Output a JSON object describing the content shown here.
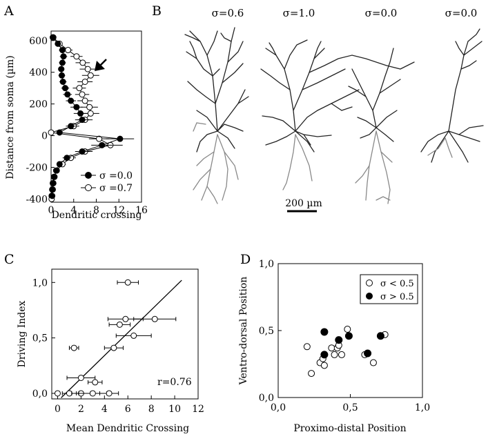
{
  "panels": {
    "A": "A",
    "B": "B",
    "C": "C",
    "D": "D"
  },
  "sigma_labels": [
    "σ=0.6",
    "σ=1.0",
    "σ=0.0",
    "σ=0.0"
  ],
  "scale_bar": "200 µm",
  "chart_data": [
    {
      "panel": "A",
      "type": "line",
      "xlabel": "Dendritic crossing",
      "ylabel": "Distance from soma (µm)",
      "xlim": [
        0,
        16
      ],
      "ylim": [
        -420,
        660
      ],
      "xticks": [
        0,
        4,
        8,
        12,
        16
      ],
      "yticks": [
        600,
        400,
        200,
        0,
        -200,
        -400
      ],
      "legend": "bottom-right",
      "annotation": "arrow at ~420 µm",
      "series": [
        {
          "name": "σ =0.0",
          "marker": "filled",
          "y": [
            620,
            580,
            540,
            500,
            460,
            420,
            380,
            340,
            300,
            260,
            220,
            180,
            140,
            100,
            60,
            20,
            -20,
            -60,
            -100,
            -140,
            -180,
            -220,
            -260,
            -300,
            -340,
            -380
          ],
          "x": [
            0.3,
            1.2,
            2.0,
            2.2,
            2.0,
            1.8,
            1.9,
            2.1,
            2.5,
            2.9,
            3.5,
            4.5,
            5.2,
            5.5,
            3.5,
            1.5,
            12.2,
            9.0,
            5.5,
            2.8,
            1.5,
            0.9,
            0.6,
            0.4,
            0.3,
            0.2
          ]
        },
        {
          "name": "σ =0.7",
          "marker": "open",
          "y": [
            620,
            580,
            540,
            500,
            460,
            420,
            380,
            340,
            300,
            260,
            220,
            180,
            140,
            100,
            60,
            20,
            -20,
            -60,
            -100,
            -140,
            -180,
            -220,
            -260,
            -300,
            -340,
            -380,
            -400
          ],
          "x": [
            0.4,
            1.5,
            3.0,
            4.5,
            5.6,
            6.5,
            7.0,
            6.0,
            5.0,
            5.5,
            6.0,
            6.8,
            7.0,
            6.0,
            4.0,
            0.0,
            8.5,
            10.5,
            6.0,
            3.5,
            2.0,
            1.0,
            0.5,
            0.3,
            0.2,
            0.1,
            0.1
          ]
        }
      ]
    },
    {
      "panel": "C",
      "type": "scatter",
      "xlabel": "Mean Dendritic Crossing",
      "ylabel": "Driving Index",
      "xlim": [
        -0.5,
        12
      ],
      "ylim": [
        -0.05,
        1.12
      ],
      "xticks": [
        0,
        2,
        4,
        6,
        8,
        10,
        12
      ],
      "yticks": [
        "0,0",
        "0,5",
        "1,0"
      ],
      "annotation": "r=0.76",
      "fit_line": {
        "x": [
          0.3,
          10.6
        ],
        "y": [
          -0.04,
          1.02
        ]
      },
      "points": [
        {
          "x": 6.0,
          "y": 1.0,
          "xerr": 0.9
        },
        {
          "x": 5.8,
          "y": 0.67,
          "xerr": 1.5
        },
        {
          "x": 8.3,
          "y": 0.67,
          "xerr": 1.8
        },
        {
          "x": 5.3,
          "y": 0.62,
          "xerr": 0.9
        },
        {
          "x": 6.5,
          "y": 0.52,
          "xerr": 1.5
        },
        {
          "x": 4.8,
          "y": 0.41,
          "xerr": 0.8
        },
        {
          "x": 1.4,
          "y": 0.41,
          "xerr": 0.4
        },
        {
          "x": 2.0,
          "y": 0.14,
          "xerr": 1.2
        },
        {
          "x": 3.2,
          "y": 0.1,
          "xerr": 0.6
        },
        {
          "x": 0.0,
          "y": 0.0,
          "xerr": 0.0
        },
        {
          "x": 1.0,
          "y": 0.0,
          "xerr": 0.6
        },
        {
          "x": 2.0,
          "y": 0.0,
          "xerr": 0.8
        },
        {
          "x": 3.0,
          "y": 0.0,
          "xerr": 1.2
        },
        {
          "x": 4.4,
          "y": 0.0,
          "xerr": 0.8
        }
      ]
    },
    {
      "panel": "D",
      "type": "scatter",
      "xlabel": "Proximo-distal Position",
      "ylabel": "Ventro-dorsal Position",
      "xlim": [
        0,
        1
      ],
      "ylim": [
        0,
        1
      ],
      "xticks": [
        "0,0",
        "0,5",
        "1,0"
      ],
      "yticks": [
        "0,0",
        "0,5",
        "1,0"
      ],
      "legend": "top-right",
      "series": [
        {
          "name": "σ < 0.5",
          "marker": "open",
          "points": [
            [
              0.2,
              0.38
            ],
            [
              0.23,
              0.18
            ],
            [
              0.29,
              0.26
            ],
            [
              0.31,
              0.29
            ],
            [
              0.32,
              0.24
            ],
            [
              0.37,
              0.37
            ],
            [
              0.39,
              0.32
            ],
            [
              0.41,
              0.37
            ],
            [
              0.42,
              0.39
            ],
            [
              0.44,
              0.32
            ],
            [
              0.48,
              0.51
            ],
            [
              0.6,
              0.32
            ],
            [
              0.66,
              0.26
            ],
            [
              0.74,
              0.47
            ]
          ]
        },
        {
          "name": "σ > 0.5",
          "marker": "filled",
          "points": [
            [
              0.32,
              0.49
            ],
            [
              0.32,
              0.32
            ],
            [
              0.42,
              0.43
            ],
            [
              0.49,
              0.46
            ],
            [
              0.62,
              0.33
            ],
            [
              0.71,
              0.46
            ]
          ]
        }
      ]
    }
  ]
}
